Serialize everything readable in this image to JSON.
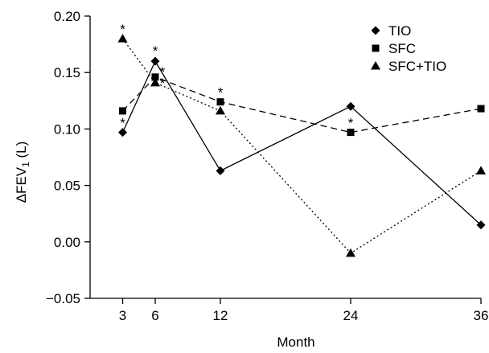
{
  "chart_data": {
    "type": "line",
    "xlabel": "Month",
    "ylabel": {
      "prefix": "ΔFEV",
      "subscript": "1",
      "suffix": " (L)"
    },
    "xlim": [
      0,
      36
    ],
    "ylim": [
      -0.05,
      0.2
    ],
    "x_ticks": [
      3,
      6,
      12,
      24,
      36
    ],
    "y_ticks": [
      {
        "value": -0.05,
        "label": "−0.05"
      },
      {
        "value": 0.0,
        "label": "0.00"
      },
      {
        "value": 0.05,
        "label": "0.05"
      },
      {
        "value": 0.1,
        "label": "0.10"
      },
      {
        "value": 0.15,
        "label": "0.15"
      },
      {
        "value": 0.2,
        "label": "0.20"
      }
    ],
    "x": [
      3,
      6,
      12,
      24,
      36
    ],
    "series": [
      {
        "name": "TIO",
        "marker": "diamond",
        "line": "solid",
        "values": [
          0.097,
          0.16,
          0.063,
          0.12,
          0.015
        ]
      },
      {
        "name": "SFC",
        "marker": "square",
        "line": "dashed",
        "values": [
          0.116,
          0.146,
          0.124,
          0.097,
          0.118
        ]
      },
      {
        "name": "SFC+TIO",
        "marker": "triangle",
        "line": "dotted",
        "values": [
          0.18,
          0.141,
          0.116,
          -0.01,
          0.063
        ]
      }
    ],
    "annotations": [
      {
        "text": "*",
        "x": 3,
        "y": 0.18
      },
      {
        "text": "*",
        "x": 3,
        "y": 0.097
      },
      {
        "text": "*",
        "x": 6,
        "y": 0.16
      },
      {
        "text": "*",
        "x": 6,
        "y": 0.146
      },
      {
        "text": "*",
        "x": 6,
        "y": 0.141
      },
      {
        "text": "*",
        "x": 12,
        "y": 0.124
      },
      {
        "text": "*",
        "x": 24,
        "y": 0.097
      }
    ],
    "legend_position": "top-right",
    "grid": false
  }
}
